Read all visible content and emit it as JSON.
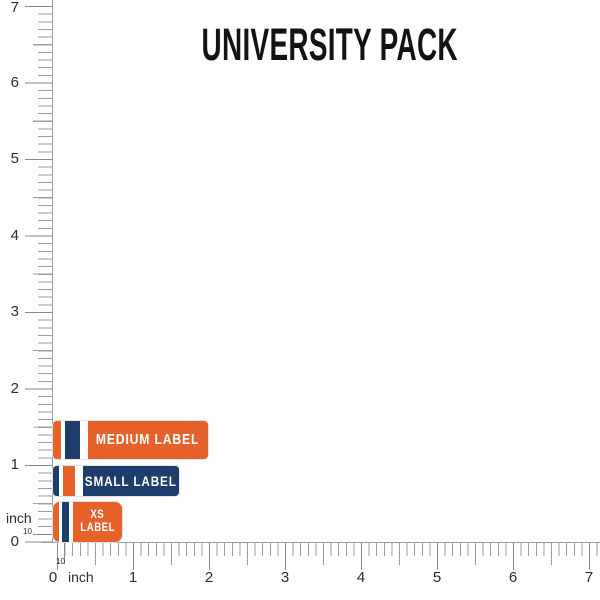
{
  "title": "UNIVERSITY PACK",
  "rulers": {
    "vertical": {
      "unit": "inch",
      "tens_label": "10",
      "numbers": [
        "7",
        "6",
        "5",
        "4",
        "3",
        "2",
        "1",
        "0"
      ]
    },
    "horizontal": {
      "unit": "inch",
      "tens_label": "10",
      "numbers": [
        "0",
        "1",
        "2",
        "3",
        "4",
        "5",
        "6",
        "7"
      ]
    }
  },
  "stickers": [
    {
      "id": "medium",
      "text": "MEDIUM LABEL"
    },
    {
      "id": "small",
      "text": "SMALL LABEL"
    },
    {
      "id": "xs",
      "line1": "XS",
      "line2": "LABEL"
    }
  ],
  "colors": {
    "orange": "#e7622b",
    "navy": "#1d3e6c",
    "white": "#ffffff",
    "tick_gray": "#9d9d9d",
    "tick_dark": "#8a8a8a",
    "number_dark": "#2d2d2d",
    "title_black": "#131313"
  }
}
